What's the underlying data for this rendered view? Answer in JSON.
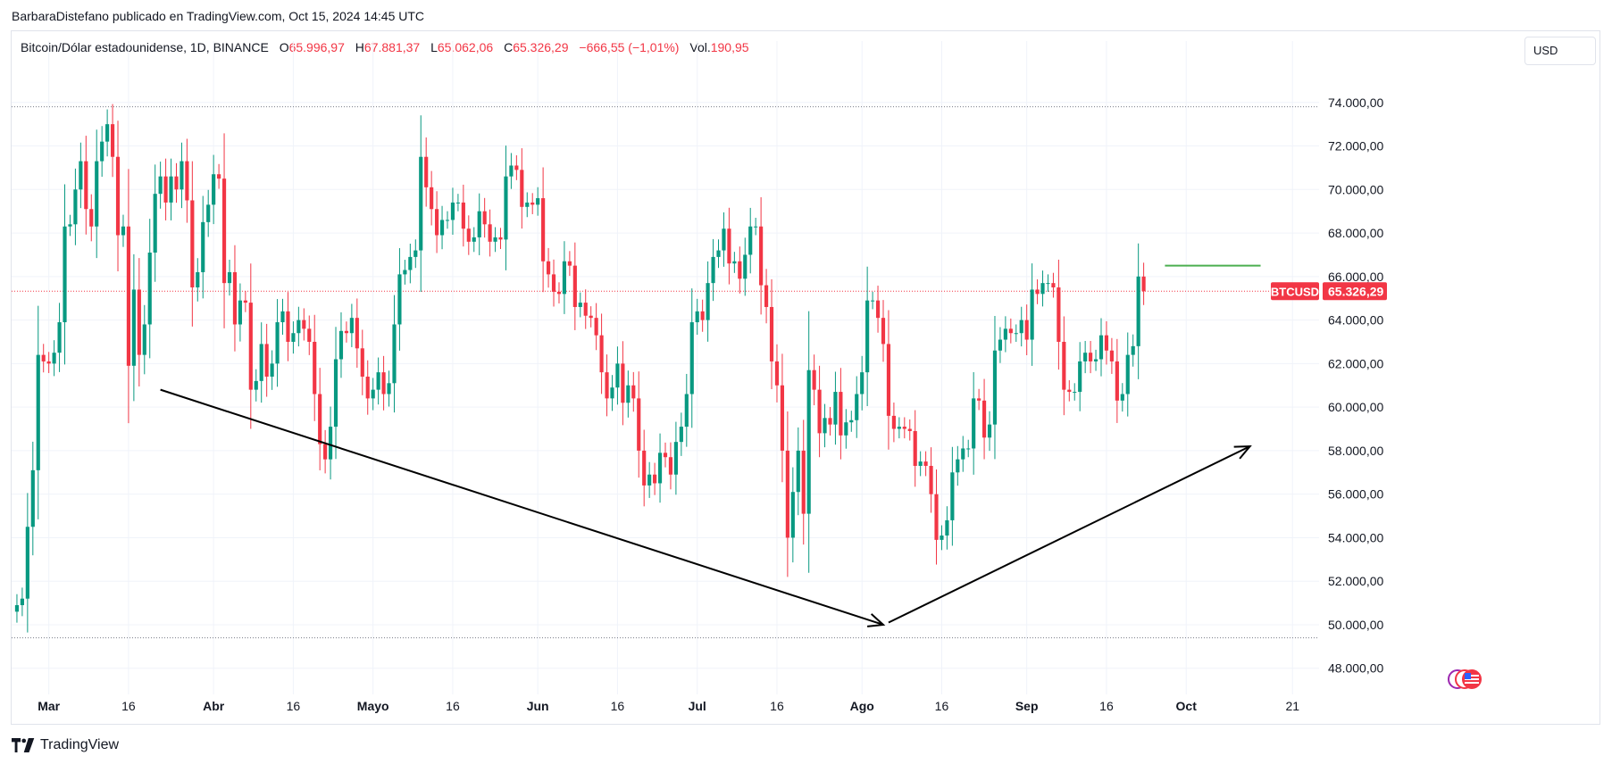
{
  "publisher_line": "BarbaraDistefano publicado en TradingView.com, Oct 15, 2024 14:45 UTC",
  "symbol_info": "Bitcoin/Dólar estadounidense, 1D, BINANCE",
  "ohlc": {
    "o_label": "O",
    "o": "65.996,97",
    "h_label": "H",
    "h": "67.881,37",
    "l_label": "L",
    "l": "65.062,06",
    "c_label": "C",
    "c": "65.326,29",
    "change": "−666,55 (−1,01%)",
    "vol_label": "Vol.",
    "vol": "190,95"
  },
  "currency": "USD",
  "footer_brand": "TradingView",
  "colors": {
    "up": "#089981",
    "down": "#f23645",
    "resistance": "#4caf50",
    "level_line": "#787b86",
    "arrow": "#000000"
  },
  "chart_data": {
    "type": "candlestick",
    "symbol": "BTCUSD",
    "interval": "1D",
    "ylim": [
      46800,
      76000
    ],
    "y_ticks": [
      48000,
      50000,
      52000,
      54000,
      56000,
      58000,
      60000,
      62000,
      64000,
      66000,
      68000,
      70000,
      72000,
      74000
    ],
    "y_tick_labels": [
      "48.000,00",
      "50.000,00",
      "52.000,00",
      "54.000,00",
      "56.000,00",
      "58.000,00",
      "60.000,00",
      "62.000,00",
      "64.000,00",
      "66.000,00",
      "68.000,00",
      "70.000,00",
      "72.000,00",
      "74.000,00"
    ],
    "x_start": "2024-02-23",
    "x_end": "2024-10-26",
    "x_tick_labels": [
      {
        "date": "2024-03-01",
        "label": "Mar",
        "bold": true
      },
      {
        "date": "2024-03-16",
        "label": "16",
        "bold": false
      },
      {
        "date": "2024-04-01",
        "label": "Abr",
        "bold": true
      },
      {
        "date": "2024-04-16",
        "label": "16",
        "bold": false
      },
      {
        "date": "2024-05-01",
        "label": "Mayo",
        "bold": true
      },
      {
        "date": "2024-05-16",
        "label": "16",
        "bold": false
      },
      {
        "date": "2024-06-01",
        "label": "Jun",
        "bold": true
      },
      {
        "date": "2024-06-16",
        "label": "16",
        "bold": false
      },
      {
        "date": "2024-07-01",
        "label": "Jul",
        "bold": true
      },
      {
        "date": "2024-07-16",
        "label": "16",
        "bold": false
      },
      {
        "date": "2024-08-01",
        "label": "Ago",
        "bold": true
      },
      {
        "date": "2024-08-16",
        "label": "16",
        "bold": false
      },
      {
        "date": "2024-09-01",
        "label": "Sep",
        "bold": true
      },
      {
        "date": "2024-09-16",
        "label": "16",
        "bold": false
      },
      {
        "date": "2024-10-01",
        "label": "Oct",
        "bold": true
      },
      {
        "date": "2024-10-21",
        "label": "21",
        "bold": false
      }
    ],
    "first_candle_date": "2024-02-24",
    "closes": [
      50900,
      51200,
      54500,
      57100,
      62400,
      62100,
      62000,
      62500,
      63900,
      68300,
      68400,
      70000,
      71300,
      69100,
      68300,
      71300,
      72200,
      73000,
      71500,
      67900,
      68300,
      61900,
      65400,
      62400,
      63800,
      67100,
      69800,
      70600,
      69400,
      70600,
      70000,
      71300,
      69500,
      65500,
      66200,
      68500,
      69300,
      70700,
      70500,
      65700,
      66200,
      63800,
      64900,
      64800,
      60800,
      61200,
      62900,
      61400,
      62000,
      63900,
      64400,
      63000,
      63400,
      64000,
      63600,
      63000,
      60600,
      58300,
      57600,
      59100,
      62200,
      63500,
      63400,
      64100,
      62700,
      61400,
      60400,
      60800,
      61600,
      60600,
      61100,
      63800,
      66100,
      66300,
      66900,
      67200,
      71500,
      70100,
      69100,
      67900,
      68600,
      68600,
      69400,
      69400,
      68200,
      67600,
      67800,
      69000,
      68400,
      67600,
      67800,
      67700,
      70600,
      71100,
      70900,
      69200,
      69400,
      69300,
      69600,
      66700,
      66100,
      65300,
      65200,
      66700,
      66500,
      64600,
      64800,
      64200,
      64100,
      63300,
      61600,
      60400,
      60900,
      62000,
      60200,
      61000,
      60400,
      58000,
      56400,
      56900,
      56500,
      57900,
      57700,
      56900,
      58400,
      59100,
      60600,
      63900,
      64400,
      64000,
      65700,
      66900,
      67200,
      68200,
      66600,
      66700,
      65900,
      67000,
      68300,
      68300,
      65600,
      64600,
      62100,
      61000,
      58000,
      54000,
      56100,
      58000,
      55100,
      61700,
      60800,
      58800,
      59500,
      59200,
      60700,
      58700,
      59300,
      59400,
      60600,
      61600,
      64900,
      64900,
      64100,
      62900,
      59600,
      59000,
      59100,
      59000,
      58900,
      57300,
      57500,
      57300,
      56000,
      53900,
      54100,
      54800,
      57000,
      57600,
      58100,
      58100,
      60400,
      60300,
      58600,
      59200,
      62600,
      63100,
      63600,
      63400,
      63400,
      64000,
      63100,
      65400,
      65200,
      65700,
      65700,
      65500,
      63000,
      60800,
      60700,
      60700,
      62100,
      62500,
      62100,
      62200,
      63300,
      62600,
      62100,
      60300,
      60600,
      62400,
      62800,
      66000,
      65326
    ],
    "y_range_endpoints": {
      "high": 73800,
      "low": 49400
    },
    "last_price_label": "65.326,29",
    "last_price": 65326.29,
    "annotations": {
      "high_line_price": 73800,
      "low_line_price": 49400,
      "resistance_price": 66500,
      "resistance_from": "2024-09-27",
      "resistance_to": "2024-10-15",
      "downtrend_arrow": {
        "from": {
          "date": "2024-03-22",
          "price": 60800
        },
        "to": {
          "date": "2024-08-05",
          "price": 50000
        }
      },
      "uptrend_arrow": {
        "from": {
          "date": "2024-08-06",
          "price": 50100
        },
        "to": {
          "date": "2024-10-13",
          "price": 58200
        }
      }
    }
  }
}
